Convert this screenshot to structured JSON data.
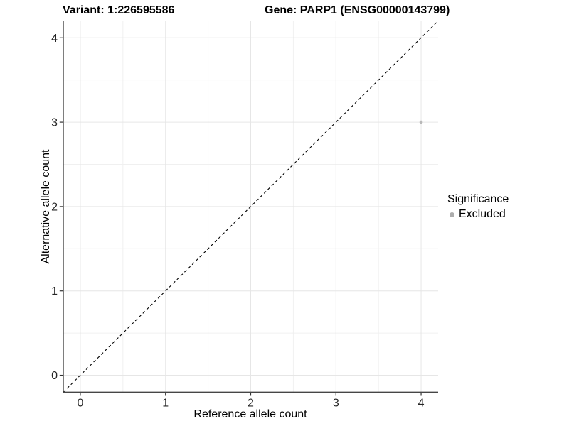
{
  "chart_data": {
    "type": "scatter",
    "titles": {
      "left": "Variant: 1:226595586",
      "right": "Gene: PARP1 (ENSG00000143799)"
    },
    "xlabel": "Reference allele count",
    "ylabel": "Alternative allele count",
    "xlim": [
      -0.2,
      4.2
    ],
    "ylim": [
      -0.2,
      4.2
    ],
    "xticks": [
      0,
      1,
      2,
      3,
      4
    ],
    "yticks": [
      0,
      1,
      2,
      3,
      4
    ],
    "minor_ticks": [
      0.5,
      1.5,
      2.5,
      3.5
    ],
    "grid": "major+minor",
    "identity_line": {
      "style": "dashed",
      "color": "#000000",
      "from": -0.2,
      "to": 4.2
    },
    "points": [
      {
        "x": 4,
        "y": 3,
        "series": "Excluded",
        "color": "#b9b9b9",
        "radius": 2.3
      }
    ],
    "legend": {
      "title": "Significance",
      "position": "right",
      "entries": [
        {
          "label": "Excluded",
          "color": "#adadad"
        }
      ]
    },
    "colors": {
      "background": "#ffffff",
      "grid_major": "#e6e6e6",
      "grid_minor": "#f0f0f0",
      "axis_line": "#464646",
      "tick_mark": "#333333",
      "tick_label": "#262626"
    }
  }
}
